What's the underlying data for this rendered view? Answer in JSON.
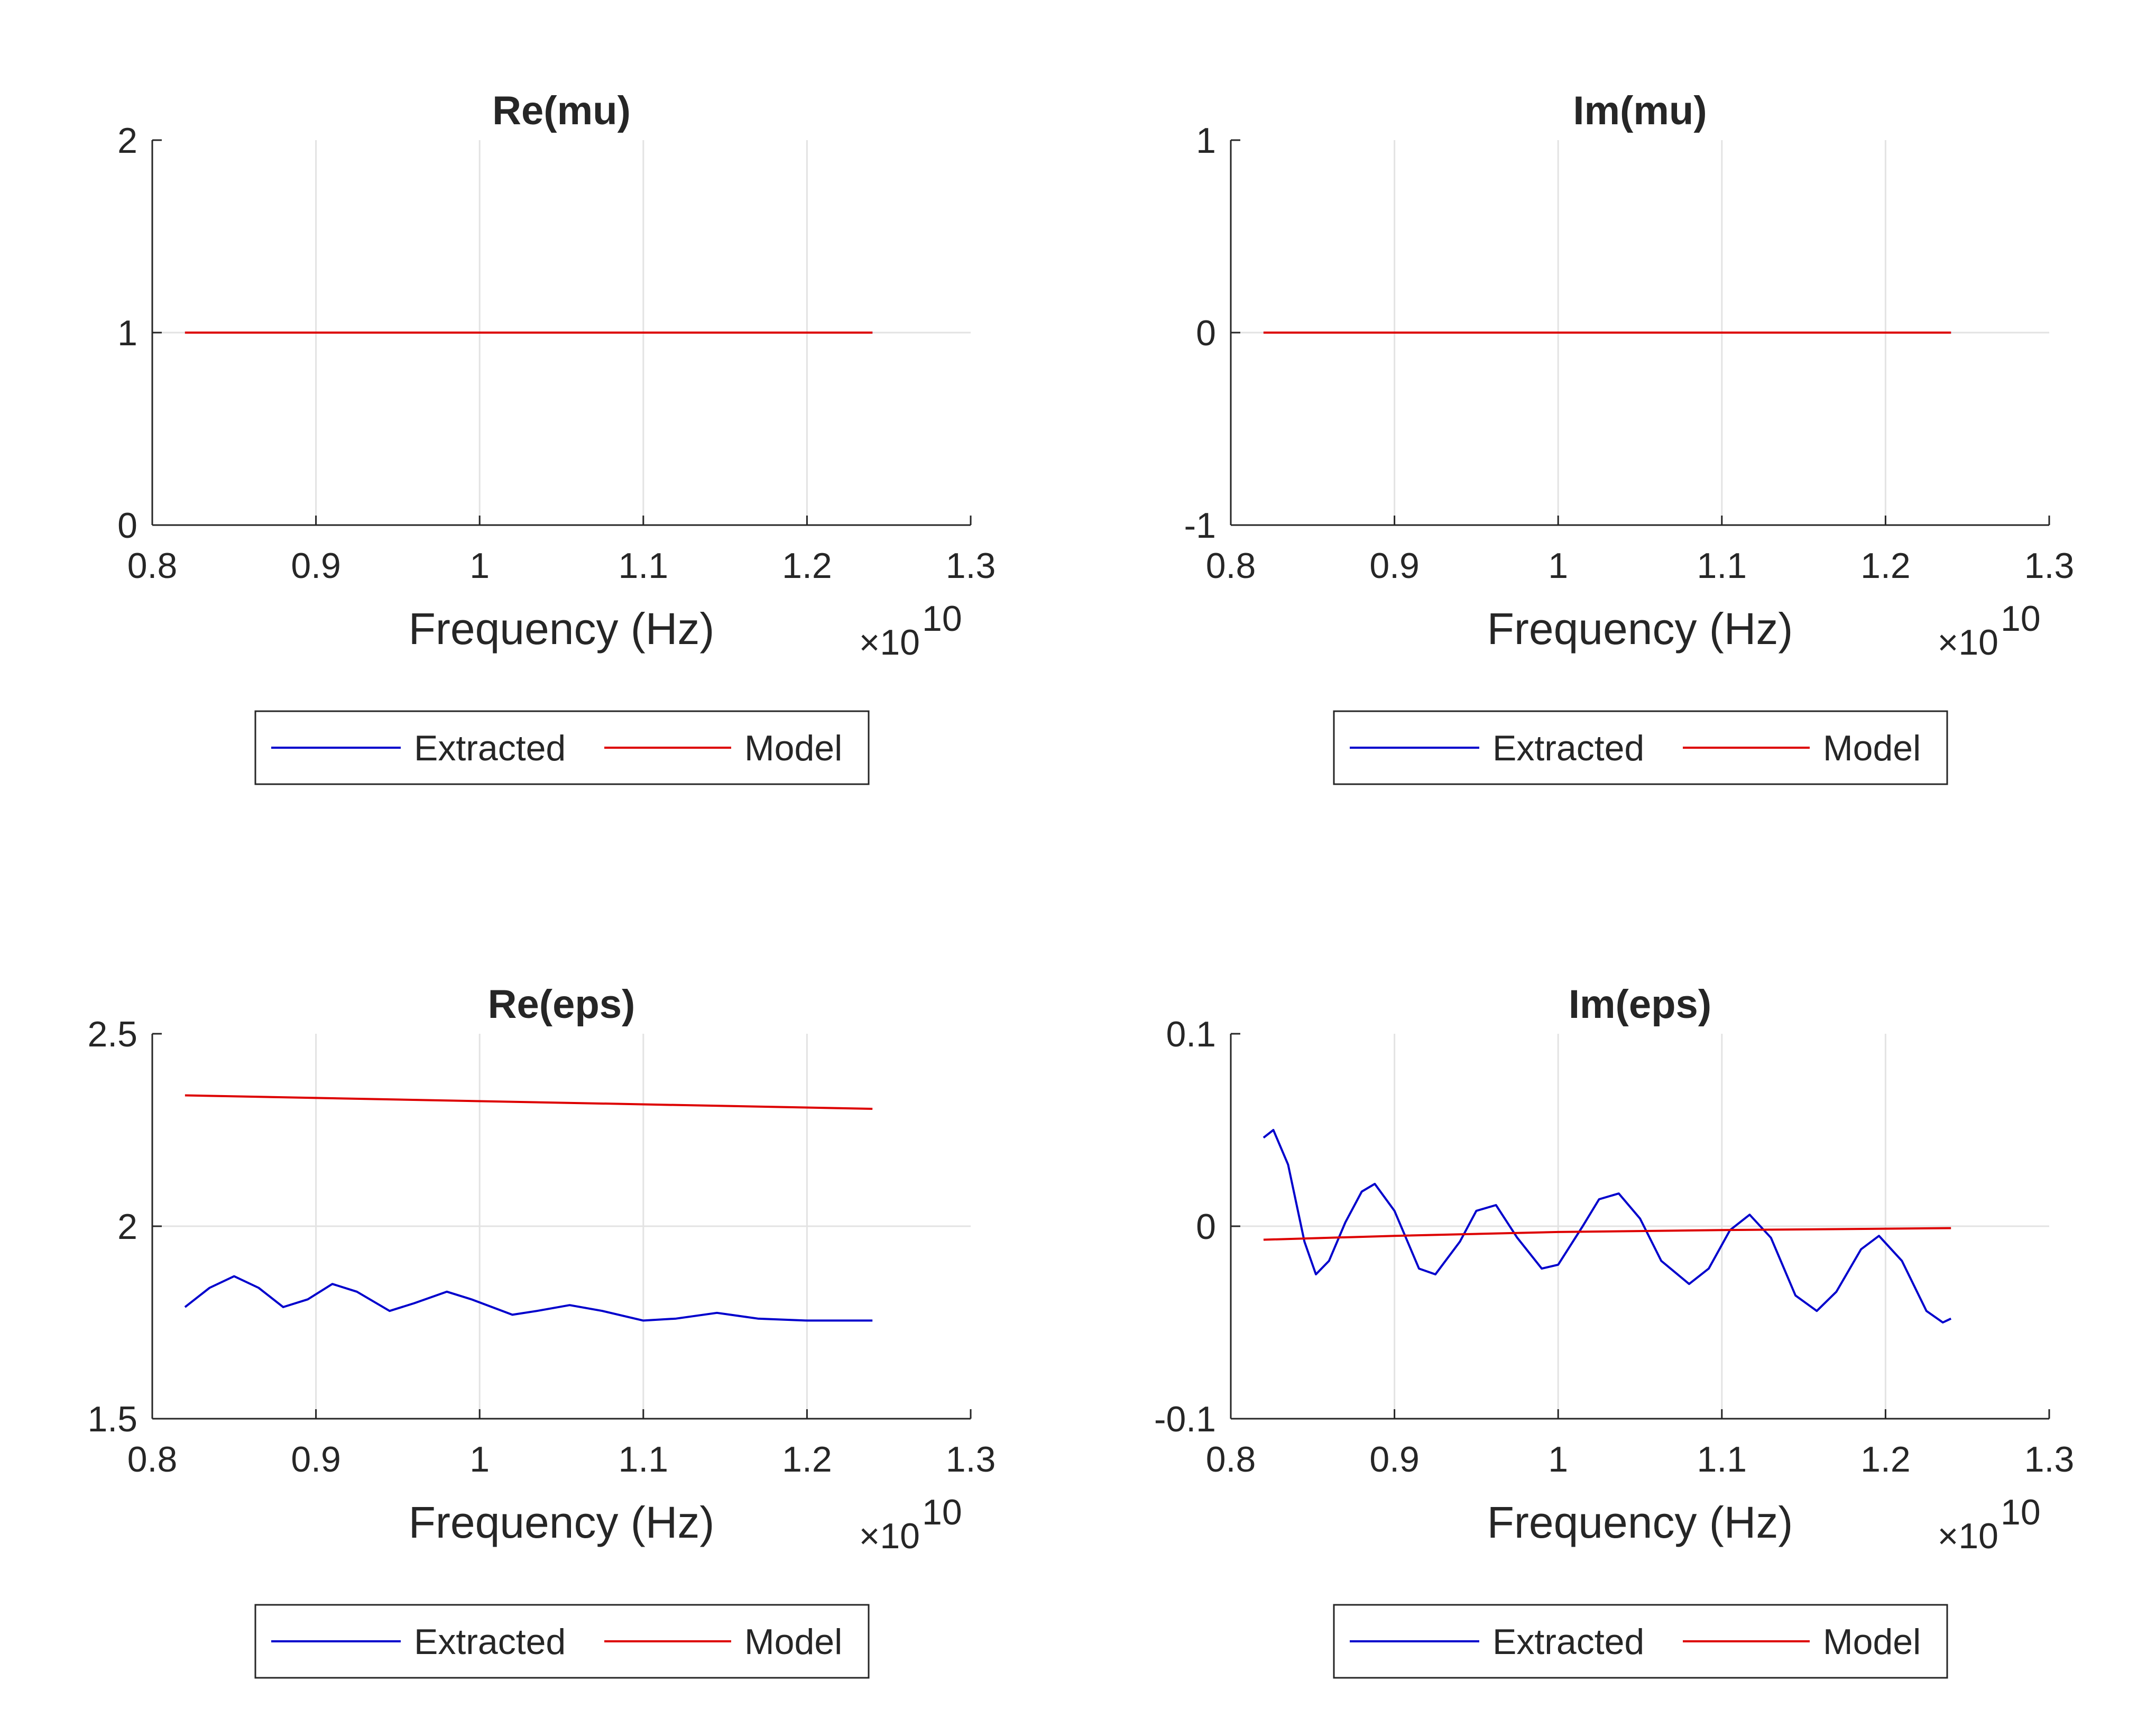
{
  "chart_data": [
    {
      "type": "line",
      "title": "Re(mu)",
      "xlabel": "Frequency (Hz)",
      "ylabel": "",
      "x_multiplier": "×10",
      "x_exponent": "10",
      "xlim": [
        0.8,
        1.3
      ],
      "ylim": [
        0,
        2
      ],
      "xticks": [
        "0.8",
        "0.9",
        "1",
        "1.1",
        "1.2",
        "1.3"
      ],
      "yticks": [
        "0",
        "1",
        "2"
      ],
      "grid": true,
      "legend": {
        "placement": "below",
        "entries": [
          "Extracted",
          "Model"
        ]
      },
      "series": [
        {
          "name": "Extracted",
          "color": "#0000cc",
          "x": [
            0.82,
            1.24
          ],
          "y": [
            1,
            1
          ]
        },
        {
          "name": "Model",
          "color": "#dd0000",
          "x": [
            0.82,
            1.24
          ],
          "y": [
            1,
            1
          ]
        }
      ]
    },
    {
      "type": "line",
      "title": "Im(mu)",
      "xlabel": "Frequency (Hz)",
      "ylabel": "",
      "x_multiplier": "×10",
      "x_exponent": "10",
      "xlim": [
        0.8,
        1.3
      ],
      "ylim": [
        -1,
        1
      ],
      "xticks": [
        "0.8",
        "0.9",
        "1",
        "1.1",
        "1.2",
        "1.3"
      ],
      "yticks": [
        "-1",
        "0",
        "1"
      ],
      "grid": true,
      "legend": {
        "placement": "below",
        "entries": [
          "Extracted",
          "Model"
        ]
      },
      "series": [
        {
          "name": "Extracted",
          "color": "#0000cc",
          "x": [
            0.82,
            1.24
          ],
          "y": [
            0,
            0
          ]
        },
        {
          "name": "Model",
          "color": "#dd0000",
          "x": [
            0.82,
            1.24
          ],
          "y": [
            0,
            0
          ]
        }
      ]
    },
    {
      "type": "line",
      "title": "Re(eps)",
      "xlabel": "Frequency (Hz)",
      "ylabel": "",
      "x_multiplier": "×10",
      "x_exponent": "10",
      "xlim": [
        0.8,
        1.3
      ],
      "ylim": [
        1.5,
        2.5
      ],
      "xticks": [
        "0.8",
        "0.9",
        "1",
        "1.1",
        "1.2",
        "1.3"
      ],
      "yticks": [
        "1.5",
        "2",
        "2.5"
      ],
      "grid": true,
      "legend": {
        "placement": "below",
        "entries": [
          "Extracted",
          "Model"
        ]
      },
      "series": [
        {
          "name": "Extracted",
          "color": "#0000cc",
          "x": [
            0.82,
            0.835,
            0.85,
            0.865,
            0.88,
            0.895,
            0.91,
            0.925,
            0.945,
            0.96,
            0.98,
            0.995,
            1.02,
            1.035,
            1.055,
            1.075,
            1.1,
            1.12,
            1.145,
            1.17,
            1.2,
            1.22,
            1.24
          ],
          "y": [
            1.79,
            1.84,
            1.87,
            1.84,
            1.79,
            1.81,
            1.85,
            1.83,
            1.78,
            1.8,
            1.83,
            1.81,
            1.77,
            1.78,
            1.795,
            1.78,
            1.755,
            1.76,
            1.775,
            1.76,
            1.755,
            1.755,
            1.755
          ]
        },
        {
          "name": "Model",
          "color": "#dd0000",
          "x": [
            0.82,
            1.24
          ],
          "y": [
            2.34,
            2.305
          ]
        }
      ]
    },
    {
      "type": "line",
      "title": "Im(eps)",
      "xlabel": "Frequency (Hz)",
      "ylabel": "",
      "x_multiplier": "×10",
      "x_exponent": "10",
      "xlim": [
        0.8,
        1.3
      ],
      "ylim": [
        -0.1,
        0.1
      ],
      "xticks": [
        "0.8",
        "0.9",
        "1",
        "1.1",
        "1.2",
        "1.3"
      ],
      "yticks": [
        "-0.1",
        "0",
        "0.1"
      ],
      "grid": true,
      "legend": {
        "placement": "below",
        "entries": [
          "Extracted",
          "Model"
        ]
      },
      "series": [
        {
          "name": "Extracted",
          "color": "#0000cc",
          "x": [
            0.82,
            0.826,
            0.835,
            0.845,
            0.852,
            0.86,
            0.87,
            0.88,
            0.888,
            0.9,
            0.915,
            0.925,
            0.94,
            0.95,
            0.962,
            0.975,
            0.99,
            1.0,
            1.015,
            1.025,
            1.037,
            1.05,
            1.063,
            1.08,
            1.092,
            1.105,
            1.117,
            1.13,
            1.145,
            1.158,
            1.17,
            1.185,
            1.196,
            1.21,
            1.225,
            1.235,
            1.24
          ],
          "y": [
            0.046,
            0.05,
            0.032,
            -0.008,
            -0.025,
            -0.018,
            0.002,
            0.018,
            0.022,
            0.008,
            -0.022,
            -0.025,
            -0.008,
            0.008,
            0.011,
            -0.006,
            -0.022,
            -0.02,
            0.0,
            0.014,
            0.017,
            0.004,
            -0.018,
            -0.03,
            -0.022,
            -0.002,
            0.006,
            -0.006,
            -0.036,
            -0.044,
            -0.034,
            -0.012,
            -0.005,
            -0.018,
            -0.044,
            -0.05,
            -0.048
          ]
        },
        {
          "name": "Model",
          "color": "#dd0000",
          "x": [
            0.82,
            0.9,
            1.0,
            1.1,
            1.24
          ],
          "y": [
            -0.007,
            -0.005,
            -0.003,
            -0.002,
            -0.001
          ]
        }
      ]
    }
  ]
}
